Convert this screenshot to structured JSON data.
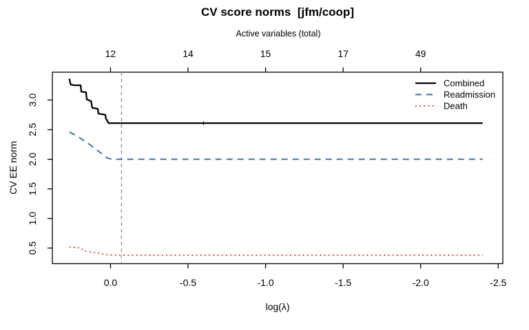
{
  "chart_data": {
    "type": "line",
    "title": "CV score norms  [jfm/coop]",
    "top_axis_label": "Active variables (total)",
    "xlabel": "log(λ)",
    "ylabel": "CV EE norm",
    "x_axis": {
      "reversed": true,
      "xlim": [
        0.375,
        -2.53
      ],
      "tick_values": [
        0,
        -0.5,
        -1,
        -1.5,
        -2,
        -2.5
      ],
      "tick_labels": [
        "0.0",
        "-0.5",
        "-1.0",
        "-1.5",
        "-2.0",
        "-2.5"
      ],
      "grid": false
    },
    "top_axis": {
      "tick_values": [
        0,
        -0.5,
        -1,
        -1.5,
        -2
      ],
      "tick_labels": [
        "12",
        "14",
        "15",
        "17",
        "49"
      ]
    },
    "y_axis": {
      "ylim": [
        0.237,
        3.47
      ],
      "tick_values": [
        0.5,
        1.0,
        1.5,
        2.0,
        2.5,
        3.0
      ],
      "tick_labels": [
        "0.5",
        "1.0",
        "1.5",
        "2.0",
        "2.5",
        "3.0"
      ],
      "grid": false
    },
    "reference_line": {
      "x": -0.071,
      "color": "#8c8c8c",
      "style": "dashed"
    },
    "marker_tick": {
      "x": -0.6,
      "y": 2.61,
      "series": "Combined"
    },
    "legend": {
      "position": "top-right",
      "entries": [
        "Combined",
        "Readmission",
        "Death"
      ]
    },
    "series": [
      {
        "name": "Combined",
        "color": "#000000",
        "style": "solid",
        "width": 2.3,
        "points": [
          [
            0.265,
            3.36
          ],
          [
            0.261,
            3.3
          ],
          [
            0.256,
            3.26
          ],
          [
            0.235,
            3.25
          ],
          [
            0.193,
            3.25
          ],
          [
            0.188,
            3.14
          ],
          [
            0.158,
            3.13
          ],
          [
            0.153,
            3.01
          ],
          [
            0.125,
            2.98
          ],
          [
            0.118,
            2.87
          ],
          [
            0.082,
            2.85
          ],
          [
            0.078,
            2.77
          ],
          [
            0.033,
            2.75
          ],
          [
            0.03,
            2.69
          ],
          [
            0.016,
            2.63
          ],
          [
            0.013,
            2.61
          ],
          [
            -2.4,
            2.61
          ]
        ]
      },
      {
        "name": "Readmission",
        "color": "#3b6ea5",
        "style": "dashed",
        "width": 1.9,
        "points": [
          [
            0.265,
            2.46
          ],
          [
            0.22,
            2.4
          ],
          [
            0.18,
            2.33
          ],
          [
            0.14,
            2.26
          ],
          [
            0.1,
            2.18
          ],
          [
            0.06,
            2.1
          ],
          [
            0.02,
            2.02
          ],
          [
            -0.01,
            2.0
          ],
          [
            -2.4,
            2.0
          ]
        ]
      },
      {
        "name": "Death",
        "color": "#ee3a28",
        "style": "dotted",
        "width": 1.8,
        "points": [
          [
            0.265,
            0.52
          ],
          [
            0.23,
            0.51
          ],
          [
            0.19,
            0.5
          ],
          [
            0.17,
            0.45
          ],
          [
            0.12,
            0.43
          ],
          [
            0.07,
            0.41
          ],
          [
            0.03,
            0.39
          ],
          [
            -0.02,
            0.38
          ],
          [
            -2.4,
            0.38
          ]
        ]
      }
    ]
  }
}
